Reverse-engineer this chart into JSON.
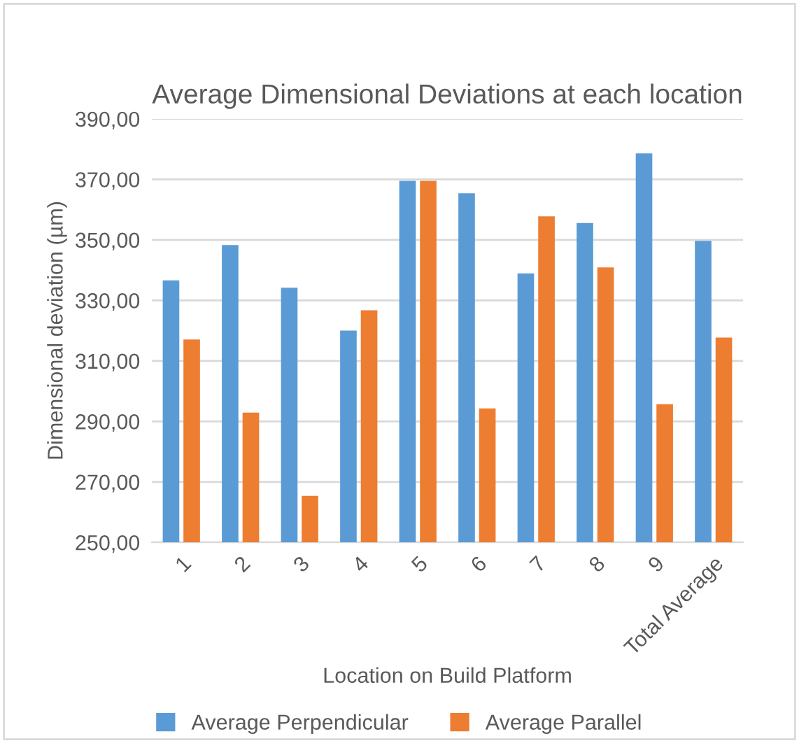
{
  "chart_data": {
    "type": "bar",
    "title": "Average Dimensional Deviations at each location",
    "xlabel": "Location on Build Platform",
    "ylabel": "Dimensional deviation (µm)",
    "categories": [
      "1",
      "2",
      "3",
      "4",
      "5",
      "6",
      "7",
      "8",
      "9",
      "Total Average"
    ],
    "series": [
      {
        "name": "Average Perpendicular",
        "color": "#5b9bd5",
        "values": [
          336.6,
          348.3,
          334.2,
          320.0,
          369.5,
          365.4,
          338.9,
          355.6,
          378.6,
          349.7
        ]
      },
      {
        "name": "Average Parallel",
        "color": "#ed7d31",
        "values": [
          317.1,
          292.9,
          265.4,
          326.7,
          369.5,
          294.3,
          357.8,
          340.9,
          295.7,
          317.7
        ]
      }
    ],
    "ylim": [
      250,
      390
    ],
    "yticks": [
      {
        "value": 250,
        "label": "250,00"
      },
      {
        "value": 270,
        "label": "270,00"
      },
      {
        "value": 290,
        "label": "290,00"
      },
      {
        "value": 310,
        "label": "310,00"
      },
      {
        "value": 330,
        "label": "330,00"
      },
      {
        "value": 350,
        "label": "350,00"
      },
      {
        "value": 370,
        "label": "370,00"
      },
      {
        "value": 390,
        "label": "390,00"
      }
    ],
    "grid": "y",
    "legend": "bottom"
  }
}
